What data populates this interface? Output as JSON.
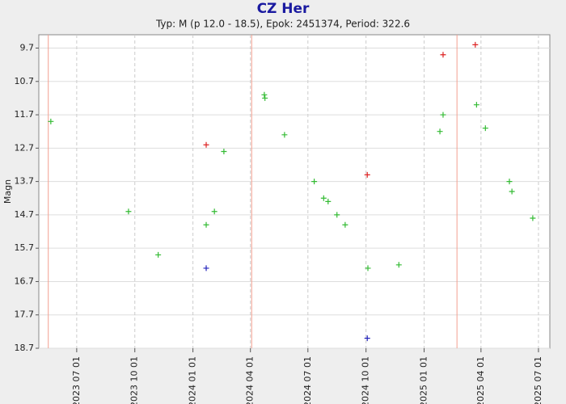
{
  "chart_data": {
    "type": "scatter",
    "title": "CZ Her",
    "subtitle": "Typ: M (p 12.0 - 18.5), Epok: 2451374, Period: 322.6",
    "y_label": "Magn",
    "xlim": [
      "2023-05-02",
      "2025-07-19"
    ],
    "xticks": [
      {
        "value": "2023-07-01",
        "label": "2023 07 01"
      },
      {
        "value": "2023-10-01",
        "label": "2023 10 01"
      },
      {
        "value": "2024-01-01",
        "label": "2024 01 01"
      },
      {
        "value": "2024-04-01",
        "label": "2024 04 01"
      },
      {
        "value": "2024-07-01",
        "label": "2024 07 01"
      },
      {
        "value": "2024-10-01",
        "label": "2024 10 01"
      },
      {
        "value": "2025-01-01",
        "label": "2025 01 01"
      },
      {
        "value": "2025-04-01",
        "label": "2025 04 01"
      },
      {
        "value": "2025-07-01",
        "label": "2025 07 01"
      }
    ],
    "ylim": [
      18.7,
      9.3
    ],
    "yticks": [
      9.7,
      10.7,
      11.7,
      12.7,
      13.7,
      14.7,
      15.7,
      16.7,
      17.7,
      18.7
    ],
    "grid": true,
    "max_lines": {
      "color": "#f4a090",
      "x": [
        "2023-05-17",
        "2024-04-03",
        "2025-02-22"
      ]
    },
    "series": [
      {
        "color": "#33bb33",
        "x": [
          "2023-05-21",
          "2023-09-21",
          "2023-11-07",
          "2024-01-22",
          "2024-02-04",
          "2024-02-19",
          "2024-04-23",
          "2024-04-24",
          "2024-05-25",
          "2024-07-11",
          "2024-07-26",
          "2024-08-02",
          "2024-08-16",
          "2024-08-29",
          "2024-10-04",
          "2024-11-22",
          "2025-01-26",
          "2025-01-31",
          "2025-03-25",
          "2025-04-08",
          "2025-05-16",
          "2025-05-20",
          "2025-06-22"
        ],
        "values": [
          11.9,
          14.6,
          15.9,
          15.0,
          14.6,
          12.8,
          11.1,
          11.2,
          12.3,
          13.7,
          14.2,
          14.3,
          14.7,
          15.0,
          16.3,
          16.2,
          12.2,
          11.7,
          11.4,
          12.1,
          13.7,
          14.0,
          14.8
        ]
      },
      {
        "color": "#dd2222",
        "x": [
          "2024-01-22",
          "2024-10-03",
          "2025-01-31",
          "2025-03-23"
        ],
        "values": [
          12.6,
          13.5,
          9.9,
          9.6
        ]
      },
      {
        "color": "#2222bb",
        "x": [
          "2024-01-22",
          "2024-10-03"
        ],
        "values": [
          16.3,
          18.4
        ]
      }
    ]
  }
}
